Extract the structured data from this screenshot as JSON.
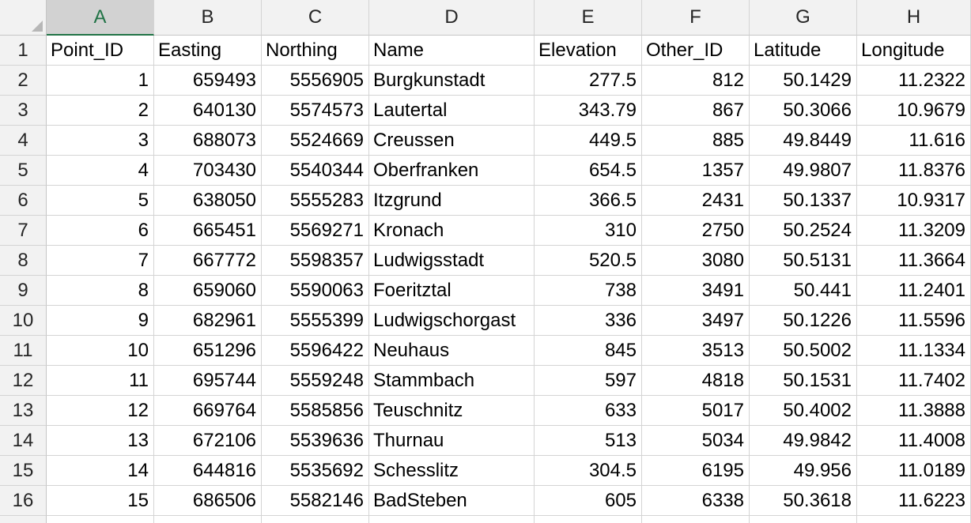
{
  "columns": [
    "A",
    "B",
    "C",
    "D",
    "E",
    "F",
    "G",
    "H"
  ],
  "selected_column": "A",
  "rows": [
    [
      "Point_ID",
      "Easting",
      "Northing",
      "Name",
      "Elevation",
      "Other_ID",
      "Latitude",
      "Longitude"
    ],
    [
      "1",
      "659493",
      "5556905",
      "Burgkunstadt",
      "277.5",
      "812",
      "50.1429",
      "11.2322"
    ],
    [
      "2",
      "640130",
      "5574573",
      "Lautertal",
      "343.79",
      "867",
      "50.3066",
      "10.9679"
    ],
    [
      "3",
      "688073",
      "5524669",
      "Creussen",
      "449.5",
      "885",
      "49.8449",
      "11.616"
    ],
    [
      "4",
      "703430",
      "5540344",
      "Oberfranken",
      "654.5",
      "1357",
      "49.9807",
      "11.8376"
    ],
    [
      "5",
      "638050",
      "5555283",
      "Itzgrund",
      "366.5",
      "2431",
      "50.1337",
      "10.9317"
    ],
    [
      "6",
      "665451",
      "5569271",
      "Kronach",
      "310",
      "2750",
      "50.2524",
      "11.3209"
    ],
    [
      "7",
      "667772",
      "5598357",
      "Ludwigsstadt",
      "520.5",
      "3080",
      "50.5131",
      "11.3664"
    ],
    [
      "8",
      "659060",
      "5590063",
      "Foeritztal",
      "738",
      "3491",
      "50.441",
      "11.2401"
    ],
    [
      "9",
      "682961",
      "5555399",
      "Ludwigschorgast",
      "336",
      "3497",
      "50.1226",
      "11.5596"
    ],
    [
      "10",
      "651296",
      "5596422",
      "Neuhaus",
      "845",
      "3513",
      "50.5002",
      "11.1334"
    ],
    [
      "11",
      "695744",
      "5559248",
      "Stammbach",
      "597",
      "4818",
      "50.1531",
      "11.7402"
    ],
    [
      "12",
      "669764",
      "5585856",
      "Teuschnitz",
      "633",
      "5017",
      "50.4002",
      "11.3888"
    ],
    [
      "13",
      "672106",
      "5539636",
      "Thurnau",
      "513",
      "5034",
      "49.9842",
      "11.4008"
    ],
    [
      "14",
      "644816",
      "5535692",
      "Schesslitz",
      "304.5",
      "6195",
      "49.956",
      "11.0189"
    ],
    [
      "15",
      "686506",
      "5582146",
      "BadSteben",
      "605",
      "6338",
      "50.3618",
      "11.6223"
    ]
  ],
  "row_numbers": [
    "1",
    "2",
    "3",
    "4",
    "5",
    "6",
    "7",
    "8",
    "9",
    "10",
    "11",
    "12",
    "13",
    "14",
    "15",
    "16"
  ],
  "colors": {
    "accent": "#217346",
    "header_bg": "#f2f2f2",
    "gridline": "#d4d4d4"
  }
}
